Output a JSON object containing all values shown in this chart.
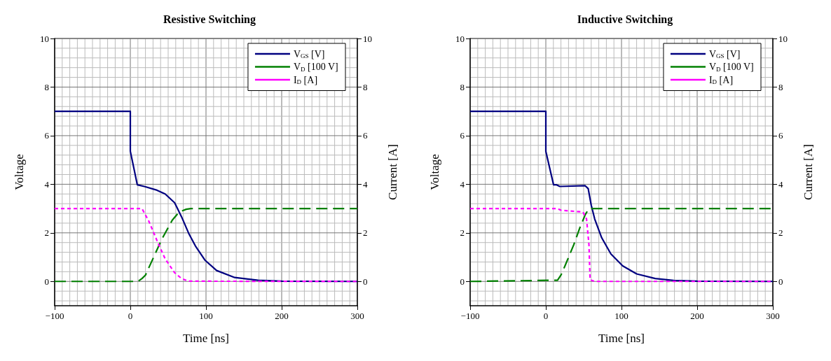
{
  "chart_data": [
    {
      "type": "line",
      "title": "Resistive Switching",
      "xlabel": "Time [ns]",
      "ylabel": "Voltage",
      "y2label": "Current [A]",
      "xlim": [
        -100,
        300
      ],
      "xticks": [
        -100,
        0,
        100,
        200,
        300
      ],
      "ylim": [
        -1,
        10
      ],
      "yticks": [
        0,
        2,
        4,
        6,
        8,
        10
      ],
      "y2lim": [
        -1,
        10
      ],
      "y2ticks": [
        0,
        2,
        4,
        6,
        8,
        10
      ],
      "grid": true,
      "legend": "top right",
      "marker": "none",
      "series": [
        {
          "name": "V$_{GS}$ [V]",
          "color": "#000080",
          "line_style": "solid",
          "x": [
            -100,
            0,
            0,
            9.2,
            18.5,
            33.8,
            46,
            58.5,
            67.7,
            77,
            86,
            98.5,
            114,
            138,
            169,
            200,
            300
          ],
          "values": [
            7,
            7,
            5.36,
            3.98,
            3.91,
            3.77,
            3.6,
            3.24,
            2.66,
            1.99,
            1.46,
            0.88,
            0.45,
            0.16,
            0.05,
            0.01,
            0
          ]
        },
        {
          "name": "V$_{D}$ [100 V]",
          "color": "#008000",
          "line_style": "dashed",
          "x": [
            -100,
            10,
            15.4,
            20,
            32,
            41.5,
            55.4,
            64.6,
            73.8,
            80,
            300
          ],
          "values": [
            0,
            0,
            0.12,
            0.26,
            1.08,
            1.73,
            2.52,
            2.86,
            2.97,
            3,
            3
          ]
        },
        {
          "name": "I$_{D}$ [A]",
          "color": "#ff00ff",
          "line_style": "dotted",
          "x": [
            -100,
            15.4,
            24.6,
            36.9,
            46,
            58.5,
            67.7,
            77,
            300
          ],
          "values": [
            3,
            3,
            2.47,
            1.56,
            0.93,
            0.36,
            0.12,
            0.01,
            0
          ]
        }
      ]
    },
    {
      "type": "line",
      "title": "Inductive Switching",
      "xlabel": "Time [ns]",
      "ylabel": "Voltage",
      "y2label": "Current [A]",
      "xlim": [
        -100,
        300
      ],
      "xticks": [
        -100,
        0,
        100,
        200,
        300
      ],
      "ylim": [
        -1,
        10
      ],
      "yticks": [
        0,
        2,
        4,
        6,
        8,
        10
      ],
      "y2lim": [
        -1,
        10
      ],
      "y2ticks": [
        0,
        2,
        4,
        6,
        8,
        10
      ],
      "grid": true,
      "legend": "top right",
      "marker": "none",
      "series": [
        {
          "name": "V$_{GS}$ [V]",
          "color": "#000080",
          "line_style": "solid",
          "x": [
            -100,
            0,
            0,
            10.2,
            13.8,
            18.5,
            52,
            56,
            60,
            64.6,
            73.8,
            86,
            101.5,
            120,
            144.6,
            169,
            200,
            300
          ],
          "values": [
            7,
            7,
            5.36,
            3.98,
            3.98,
            3.91,
            3.94,
            3.82,
            3.14,
            2.57,
            1.8,
            1.13,
            0.64,
            0.31,
            0.12,
            0.04,
            0.01,
            0
          ]
        },
        {
          "name": "V$_{D}$ [100 V]",
          "color": "#008000",
          "line_style": "dashed",
          "x": [
            -100,
            15.4,
            20,
            26,
            36.9,
            44.6,
            52.3,
            57,
            300
          ],
          "values": [
            0,
            0.05,
            0.26,
            0.69,
            1.51,
            2.18,
            2.76,
            3,
            3
          ]
        },
        {
          "name": "I$_{D}$ [A]",
          "color": "#ff00ff",
          "line_style": "dotted",
          "x": [
            -100,
            15.4,
            20,
            49,
            53.8,
            57,
            58.5,
            64.6,
            300
          ],
          "values": [
            3,
            3,
            2.93,
            2.86,
            2.57,
            1.51,
            0.07,
            0,
            0
          ]
        }
      ]
    }
  ]
}
